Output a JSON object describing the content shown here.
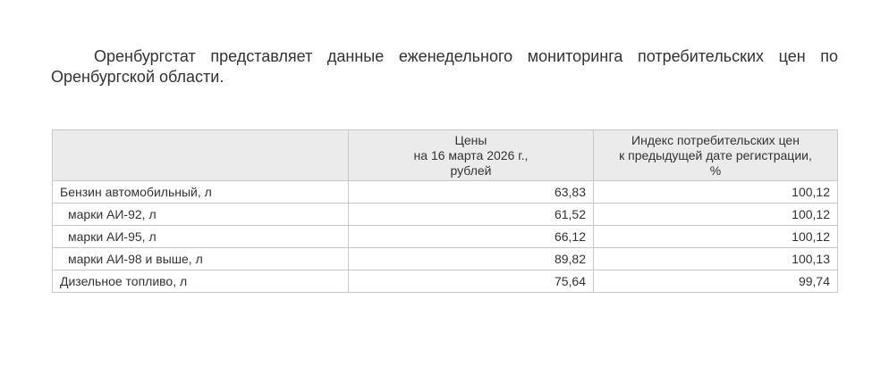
{
  "intro": "Оренбургстат представляет данные еженедельного мониторинга потребительских цен по Оренбургской области.",
  "table": {
    "headers": [
      "",
      "Цены\nна 16 марта 2026 г.,\nрублей",
      "Индекс потребительских цен\nк предыдущей дате регистрации,\n%"
    ],
    "rows": [
      {
        "name": "Бензин автомобильный, л",
        "price": "63,83",
        "index": "100,12"
      },
      {
        "name": "марки АИ-92, л",
        "price": "61,52",
        "index": "100,12"
      },
      {
        "name": "марки АИ-95, л",
        "price": "66,12",
        "index": "100,12"
      },
      {
        "name": "марки АИ-98 и выше, л",
        "price": "89,82",
        "index": "100,13"
      },
      {
        "name": "Дизельное топливо, л",
        "price": "75,64",
        "index": "99,74"
      }
    ]
  }
}
